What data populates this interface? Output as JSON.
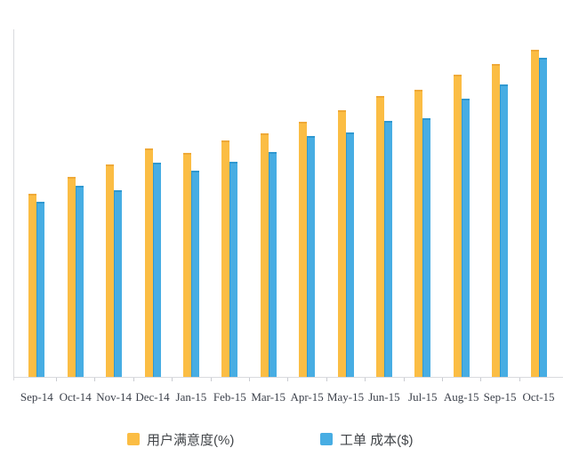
{
  "chart_data": {
    "type": "bar",
    "categories": [
      "Sep-14",
      "Oct-14",
      "Nov-14",
      "Dec-14",
      "Jan-15",
      "Feb-15",
      "Mar-15",
      "Apr-15",
      "May-15",
      "Jun-15",
      "Jul-15",
      "Aug-15",
      "Sep-15",
      "Oct-15"
    ],
    "series": [
      {
        "name": "用户满意度(%)",
        "color": "#FBBD44",
        "edge_color": "#EFA937",
        "values": [
          52.7,
          57.5,
          61.1,
          65.7,
          64.5,
          68.0,
          70.1,
          73.4,
          76.7,
          80.8,
          82.6,
          87.0,
          90.0,
          94.1
        ]
      },
      {
        "name": "工单 成本($)",
        "color": "#47ADE3",
        "edge_color": "#2F98D0",
        "values": [
          50.4,
          55.0,
          53.7,
          61.6,
          59.3,
          61.9,
          64.7,
          69.3,
          70.3,
          73.7,
          74.4,
          80.1,
          84.1,
          91.8
        ]
      }
    ],
    "title": "",
    "xlabel": "",
    "ylabel": "",
    "ylim": [
      0,
      100
    ],
    "grid": false,
    "legend_position": "bottom",
    "axis_line_color": "#d9dade",
    "tick_color": "#c9cbd1",
    "x_label_color": "#3c414b"
  }
}
